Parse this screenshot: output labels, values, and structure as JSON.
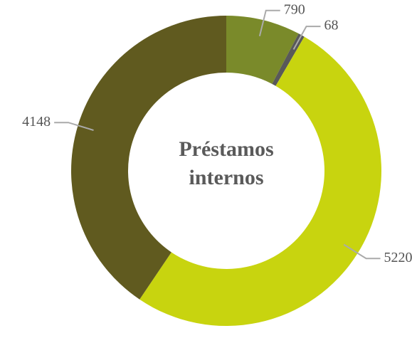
{
  "chart_data": {
    "type": "donut",
    "title": "Préstamos internos",
    "categories": [
      null,
      null,
      null,
      null
    ],
    "values": [
      790,
      68,
      5220,
      4148
    ],
    "colors": [
      "#7a8a2a",
      "#595959",
      "#c8d40f",
      "#605a1f"
    ]
  }
}
